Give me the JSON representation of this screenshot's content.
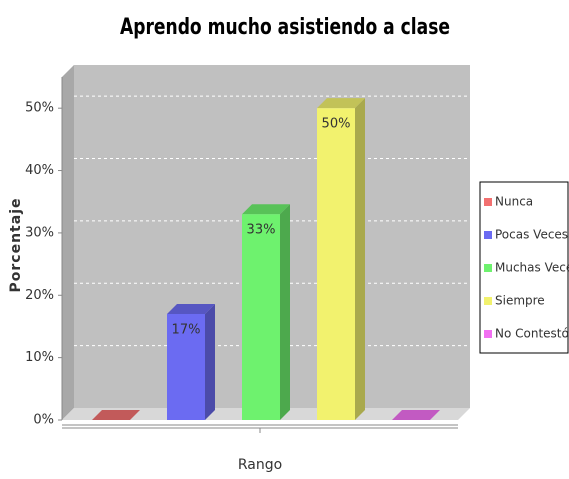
{
  "chart_data": {
    "type": "bar3d",
    "title": "Aprendo mucho asistiendo a clase",
    "y_label": "Porcentaje",
    "categories": [
      "Rango"
    ],
    "series": [
      {
        "name": "Nunca",
        "color": "#f27070",
        "values": [
          0
        ]
      },
      {
        "name": "Pocas Veces",
        "color": "#6b6bf2",
        "values": [
          17
        ],
        "value_labels": [
          "17%"
        ]
      },
      {
        "name": "Muchas Veces",
        "color": "#6ef26e",
        "values": [
          33
        ],
        "value_labels": [
          "33%"
        ]
      },
      {
        "name": "Siempre",
        "color": "#f2f26e",
        "values": [
          50
        ],
        "value_labels": [
          "50%"
        ]
      },
      {
        "name": "No Contestó",
        "color": "#f270f2",
        "values": [
          0
        ]
      }
    ],
    "ylim": [
      0,
      55
    ],
    "yticks": [
      {
        "value": 0,
        "label": "0%"
      },
      {
        "value": 10,
        "label": "10%"
      },
      {
        "value": 20,
        "label": "20%"
      },
      {
        "value": 30,
        "label": "30%"
      },
      {
        "value": 40,
        "label": "40%"
      },
      {
        "value": 50,
        "label": "50%"
      }
    ],
    "grid": true,
    "legend": "right"
  }
}
